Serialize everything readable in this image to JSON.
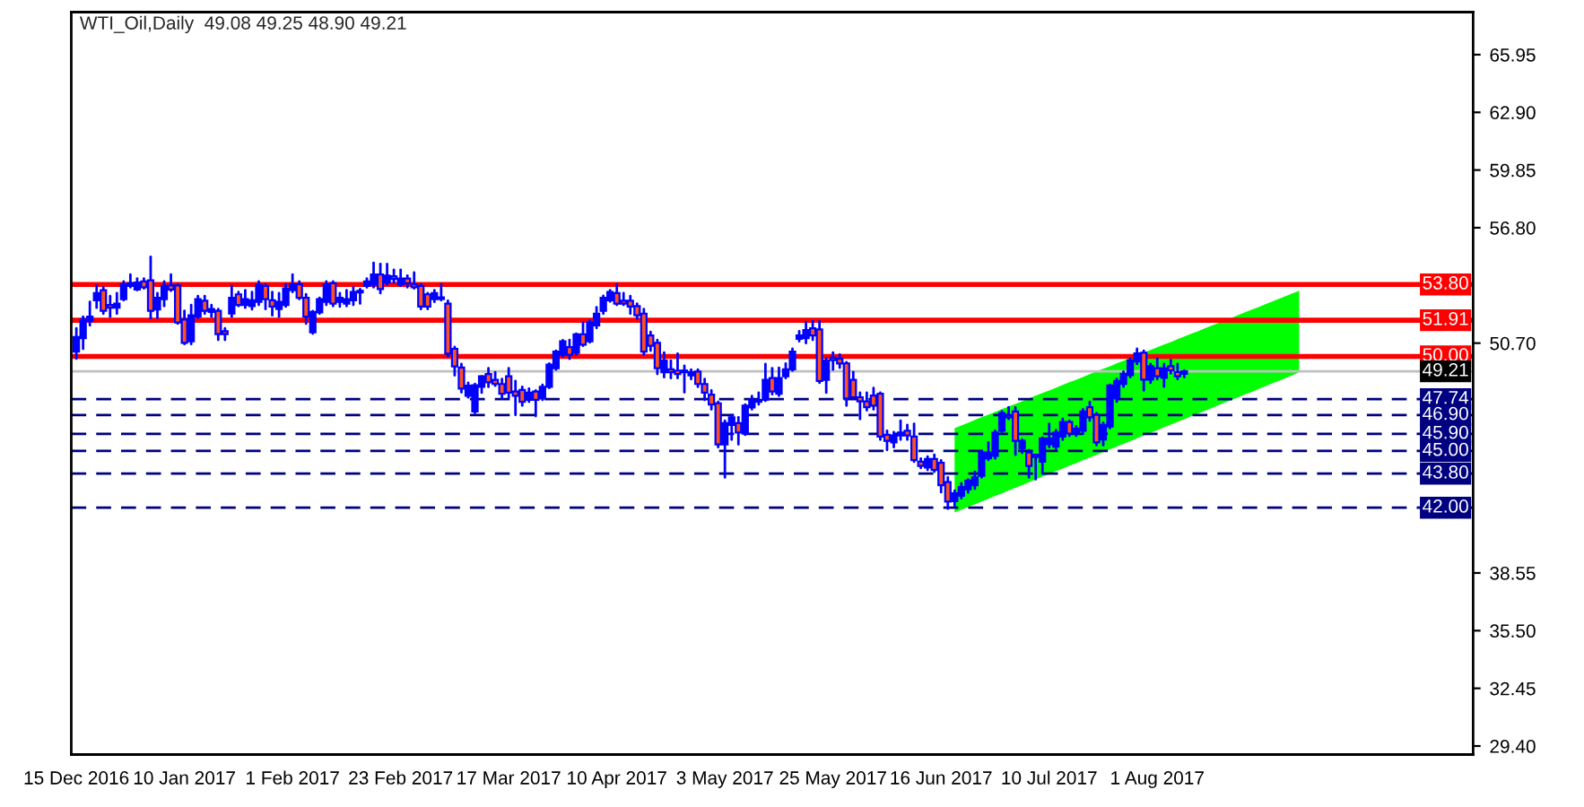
{
  "chart_data": {
    "type": "candlestick",
    "title": "WTI_Oil,Daily  49.08 49.25 48.90 49.21",
    "categories": [
      "15 Dec 2016",
      null,
      null,
      null,
      null,
      null,
      null,
      null,
      null,
      null,
      null,
      null,
      null,
      null,
      null,
      null,
      "10 Jan 2017",
      null,
      null,
      null,
      null,
      null,
      null,
      null,
      null,
      null,
      null,
      null,
      null,
      null,
      null,
      null,
      "1 Feb 2017",
      null,
      null,
      null,
      null,
      null,
      null,
      null,
      null,
      null,
      null,
      null,
      null,
      null,
      null,
      null,
      "23 Feb 2017",
      null,
      null,
      null,
      null,
      null,
      null,
      null,
      null,
      null,
      null,
      null,
      null,
      null,
      null,
      null,
      "17 Mar 2017",
      null,
      null,
      null,
      null,
      null,
      null,
      null,
      null,
      null,
      null,
      null,
      null,
      null,
      null,
      null,
      "10 Apr 2017",
      null,
      null,
      null,
      null,
      null,
      null,
      null,
      null,
      null,
      null,
      null,
      null,
      null,
      null,
      null,
      "3 May 2017",
      null,
      null,
      null,
      null,
      null,
      null,
      null,
      null,
      null,
      null,
      null,
      null,
      null,
      null,
      null,
      "25 May 2017",
      null,
      null,
      null,
      null,
      null,
      null,
      null,
      null,
      null,
      null,
      null,
      null,
      null,
      null,
      null,
      "16 Jun 2017",
      null,
      null,
      null,
      null,
      null,
      null,
      null,
      null,
      null,
      null,
      null,
      null,
      null,
      null,
      null,
      "10 Jul 2017",
      null,
      null,
      null,
      null,
      null,
      null,
      null,
      null,
      null,
      null,
      null,
      null,
      null,
      null,
      null,
      "1 Aug 2017",
      null,
      null,
      null,
      null,
      null,
      null,
      null,
      null,
      null,
      null,
      null,
      null,
      null,
      null,
      null,
      null,
      null,
      null,
      null,
      null,
      null,
      null,
      null,
      null,
      null,
      null,
      null,
      null,
      null,
      null,
      null,
      null,
      null,
      null,
      null,
      null,
      null,
      null,
      null,
      null,
      null,
      null,
      null,
      null,
      null,
      null
    ],
    "ohlc": [
      [
        50.25,
        51.48,
        49.88,
        51.02
      ],
      [
        50.96,
        52.1,
        50.4,
        51.95
      ],
      [
        51.86,
        52.88,
        51.64,
        52.1
      ],
      [
        52.97,
        53.75,
        52.57,
        53.34
      ],
      [
        53.5,
        53.65,
        52.26,
        52.41
      ],
      [
        52.72,
        53.19,
        52.1,
        52.57
      ],
      [
        52.57,
        53.34,
        52.26,
        52.79
      ],
      [
        53.03,
        53.96,
        52.97,
        53.81
      ],
      [
        53.72,
        54.33,
        53.65,
        53.87
      ],
      [
        53.53,
        54.12,
        53.5,
        53.9
      ],
      [
        53.96,
        54.12,
        53.59,
        53.65
      ],
      [
        54.02,
        55.26,
        52.01,
        52.41
      ],
      [
        52.48,
        53.34,
        52.04,
        53.1
      ],
      [
        53.03,
        53.96,
        52.66,
        53.72
      ],
      [
        53.75,
        54.33,
        53.47,
        53.53
      ],
      [
        53.75,
        53.81,
        51.73,
        51.79
      ],
      [
        51.95,
        52.41,
        50.65,
        50.71
      ],
      [
        50.8,
        52.72,
        50.65,
        52.17
      ],
      [
        52.1,
        53.19,
        52.04,
        53.03
      ],
      [
        52.94,
        53.19,
        52.26,
        52.41
      ],
      [
        52.35,
        52.72,
        52.1,
        52.5
      ],
      [
        52.41,
        52.5,
        50.87,
        51.18
      ],
      [
        51.33,
        51.48,
        50.87,
        51.18
      ],
      [
        52.26,
        53.72,
        52.1,
        53.1
      ],
      [
        53.28,
        53.4,
        52.66,
        52.72
      ],
      [
        52.72,
        53.5,
        52.57,
        53.03
      ],
      [
        52.66,
        53.4,
        52.48,
        52.97
      ],
      [
        52.88,
        53.96,
        52.72,
        53.78
      ],
      [
        53.72,
        53.81,
        52.5,
        53.03
      ],
      [
        52.97,
        53.4,
        52.17,
        52.63
      ],
      [
        52.5,
        53.34,
        52.1,
        52.88
      ],
      [
        52.72,
        53.81,
        52.63,
        53.59
      ],
      [
        53.5,
        54.33,
        53.4,
        53.81
      ],
      [
        53.81,
        53.96,
        53.03,
        53.1
      ],
      [
        53.1,
        53.28,
        51.73,
        52.1
      ],
      [
        51.27,
        52.4,
        51.2,
        52.35
      ],
      [
        52.32,
        53.1,
        52.26,
        53.03
      ],
      [
        52.88,
        53.96,
        52.72,
        53.81
      ],
      [
        53.87,
        53.96,
        52.66,
        52.79
      ],
      [
        52.88,
        53.34,
        52.63,
        53.1
      ],
      [
        52.79,
        53.5,
        52.66,
        53.03
      ],
      [
        52.97,
        53.65,
        52.72,
        53.4
      ],
      [
        53.38,
        53.56,
        52.79,
        53.47
      ],
      [
        53.72,
        54.12,
        53.65,
        53.96
      ],
      [
        53.81,
        54.95,
        53.65,
        54.33
      ],
      [
        54.33,
        54.89,
        53.34,
        53.56
      ],
      [
        53.9,
        54.89,
        53.81,
        54.27
      ],
      [
        54.23,
        54.58,
        53.9,
        54.09
      ],
      [
        53.81,
        54.58,
        53.72,
        54.12
      ],
      [
        54.12,
        54.27,
        53.65,
        53.87
      ],
      [
        53.81,
        54.43,
        53.59,
        53.65
      ],
      [
        53.72,
        53.81,
        52.5,
        52.63
      ],
      [
        53.28,
        53.34,
        52.5,
        52.63
      ],
      [
        53.03,
        53.5,
        52.88,
        53.34
      ],
      [
        53.03,
        53.81,
        52.97,
        53.12
      ],
      [
        52.79,
        52.94,
        50.0,
        50.15
      ],
      [
        50.4,
        50.5,
        49.0,
        49.47
      ],
      [
        49.41,
        49.6,
        48.1,
        48.3
      ],
      [
        47.92,
        48.6,
        47.83,
        48.45
      ],
      [
        47.09,
        48.55,
        47.0,
        48.48
      ],
      [
        48.39,
        48.95,
        48.08,
        48.95
      ],
      [
        49.07,
        49.38,
        48.39,
        48.63
      ],
      [
        48.76,
        49.16,
        48.45,
        48.54
      ],
      [
        48.54,
        48.8,
        47.77,
        48.02
      ],
      [
        48.95,
        49.38,
        47.83,
        48.08
      ],
      [
        48.14,
        48.7,
        46.9,
        47.92
      ],
      [
        48.23,
        48.39,
        47.4,
        47.6
      ],
      [
        47.7,
        48.3,
        47.6,
        48.08
      ],
      [
        48.14,
        48.2,
        46.84,
        47.7
      ],
      [
        47.77,
        48.5,
        47.7,
        48.39
      ],
      [
        48.39,
        49.62,
        48.33,
        49.56
      ],
      [
        49.38,
        50.3,
        49.3,
        50.25
      ],
      [
        50.09,
        50.85,
        50.0,
        50.8
      ],
      [
        50.49,
        50.87,
        49.87,
        50.09
      ],
      [
        50.18,
        51.2,
        50.09,
        51.17
      ],
      [
        51.17,
        51.79,
        50.56,
        50.62
      ],
      [
        50.8,
        51.9,
        50.74,
        51.79
      ],
      [
        51.64,
        52.6,
        51.5,
        52.26
      ],
      [
        52.41,
        53.2,
        52.26,
        53.1
      ],
      [
        52.97,
        53.5,
        52.9,
        53.4
      ],
      [
        53.34,
        53.81,
        52.72,
        52.79
      ],
      [
        52.94,
        53.34,
        52.72,
        52.79
      ],
      [
        52.94,
        53.19,
        52.26,
        52.63
      ],
      [
        52.66,
        52.79,
        52.0,
        52.17
      ],
      [
        52.26,
        52.5,
        50.1,
        50.25
      ],
      [
        51.11,
        51.3,
        50.3,
        50.56
      ],
      [
        50.71,
        50.87,
        49.07,
        49.38
      ],
      [
        49.16,
        50.2,
        48.9,
        49.78
      ],
      [
        49.32,
        49.78,
        48.85,
        49.16
      ],
      [
        49.25,
        50.15,
        48.85,
        49.07
      ],
      [
        49.16,
        49.5,
        48.1,
        49.25
      ],
      [
        49.0,
        49.3,
        48.8,
        49.16
      ],
      [
        49.2,
        49.3,
        48.39,
        48.54
      ],
      [
        48.54,
        48.8,
        47.7,
        48.08
      ],
      [
        47.98,
        48.2,
        47.2,
        47.46
      ],
      [
        47.52,
        47.6,
        45.2,
        45.35
      ],
      [
        45.35,
        46.6,
        43.6,
        46.47
      ],
      [
        46.38,
        46.9,
        45.6,
        46.78
      ],
      [
        46.47,
        46.78,
        45.35,
        45.97
      ],
      [
        45.91,
        47.46,
        45.85,
        47.4
      ],
      [
        47.3,
        47.9,
        47.2,
        47.7
      ],
      [
        47.6,
        48.08,
        47.46,
        47.7
      ],
      [
        47.7,
        49.6,
        47.65,
        48.76
      ],
      [
        48.85,
        49.38,
        48.0,
        48.14
      ],
      [
        48.02,
        49.4,
        47.92,
        48.85
      ],
      [
        48.95,
        49.62,
        48.85,
        49.32
      ],
      [
        49.32,
        50.4,
        49.25,
        50.25
      ],
      [
        50.93,
        51.33,
        50.8,
        51.1
      ],
      [
        50.96,
        51.8,
        50.7,
        51.39
      ],
      [
        51.48,
        51.86,
        50.87,
        51.1
      ],
      [
        51.42,
        51.86,
        48.6,
        48.7
      ],
      [
        48.76,
        49.9,
        48.08,
        49.78
      ],
      [
        49.93,
        50.2,
        49.3,
        49.8
      ],
      [
        49.87,
        50.1,
        49.4,
        49.62
      ],
      [
        49.63,
        49.7,
        47.4,
        47.77
      ],
      [
        48.76,
        49.17,
        47.77,
        47.84
      ],
      [
        47.84,
        48.08,
        46.69,
        47.62
      ],
      [
        47.62,
        48.08,
        47.15,
        47.31
      ],
      [
        47.93,
        48.33,
        47.2,
        47.4
      ],
      [
        48.02,
        48.08,
        45.6,
        45.76
      ],
      [
        45.85,
        46.07,
        45.05,
        45.54
      ],
      [
        45.45,
        46.0,
        45.2,
        45.82
      ],
      [
        45.82,
        46.6,
        45.6,
        45.98
      ],
      [
        46.07,
        46.38,
        45.6,
        45.82
      ],
      [
        45.76,
        46.44,
        44.43,
        44.52
      ],
      [
        44.43,
        44.6,
        44.1,
        44.21
      ],
      [
        44.12,
        44.7,
        44.0,
        44.58
      ],
      [
        44.58,
        44.8,
        43.9,
        43.99
      ],
      [
        44.37,
        44.5,
        42.82,
        43.19
      ],
      [
        43.35,
        43.6,
        41.95,
        42.32
      ],
      [
        42.35,
        42.9,
        42.1,
        42.76
      ],
      [
        42.63,
        43.3,
        42.5,
        43.1
      ],
      [
        42.97,
        43.5,
        42.8,
        43.44
      ],
      [
        43.19,
        43.9,
        43.0,
        43.6
      ],
      [
        43.69,
        45.0,
        43.6,
        44.92
      ],
      [
        44.61,
        45.45,
        44.52,
        44.92
      ],
      [
        44.74,
        46.07,
        44.6,
        45.98
      ],
      [
        46.07,
        47.1,
        46.0,
        47.0
      ],
      [
        46.9,
        47.31,
        46.69,
        46.78
      ],
      [
        47.09,
        47.3,
        44.8,
        45.54
      ],
      [
        45.14,
        45.6,
        44.9,
        45.54
      ],
      [
        44.92,
        45.05,
        43.6,
        44.21
      ],
      [
        44.8,
        44.8,
        43.5,
        44.68
      ],
      [
        44.43,
        45.7,
        43.8,
        45.67
      ],
      [
        45.36,
        46.44,
        45.2,
        45.67
      ],
      [
        45.23,
        46.1,
        45.1,
        45.98
      ],
      [
        45.76,
        46.7,
        45.6,
        46.53
      ],
      [
        46.53,
        46.6,
        45.8,
        45.92
      ],
      [
        45.92,
        46.3,
        45.8,
        46.17
      ],
      [
        46.07,
        47.2,
        45.9,
        47.09
      ],
      [
        47.31,
        47.6,
        46.6,
        46.78
      ],
      [
        46.91,
        47.0,
        45.3,
        45.45
      ],
      [
        45.61,
        46.5,
        45.3,
        46.38
      ],
      [
        46.29,
        48.5,
        46.2,
        48.46
      ],
      [
        47.77,
        48.8,
        47.6,
        48.7
      ],
      [
        48.55,
        49.2,
        48.4,
        49.08
      ],
      [
        49.01,
        49.9,
        48.9,
        49.79
      ],
      [
        49.73,
        50.4,
        49.6,
        50.16
      ],
      [
        50.19,
        50.3,
        48.2,
        48.77
      ],
      [
        48.77,
        49.6,
        48.6,
        49.48
      ],
      [
        49.38,
        49.9,
        48.8,
        48.95
      ],
      [
        48.86,
        49.6,
        48.4,
        49.38
      ],
      [
        49.48,
        49.8,
        49.1,
        49.26
      ],
      [
        49.17,
        49.6,
        48.8,
        48.95
      ],
      [
        49.08,
        49.25,
        48.9,
        49.21
      ],
      null,
      null,
      null,
      null,
      null,
      null,
      null,
      null,
      null,
      null,
      null,
      null,
      null,
      null,
      null,
      null,
      null,
      null,
      null,
      null,
      null,
      null,
      null,
      null,
      null,
      null,
      null,
      null,
      null,
      null,
      null,
      null,
      null,
      null,
      null,
      null,
      null,
      null,
      null,
      null,
      null,
      null
    ],
    "series": [
      {
        "type": "area",
        "color": "#00ff00",
        "values": [
          null,
          null,
          null,
          null,
          null,
          null,
          null,
          null,
          null,
          null,
          null,
          null,
          null,
          null,
          null,
          null,
          null,
          null,
          null,
          null,
          null,
          null,
          null,
          null,
          null,
          null,
          null,
          null,
          null,
          null,
          null,
          null,
          null,
          null,
          null,
          null,
          null,
          null,
          null,
          null,
          null,
          null,
          null,
          null,
          null,
          null,
          null,
          null,
          null,
          null,
          null,
          null,
          null,
          null,
          null,
          null,
          null,
          null,
          null,
          null,
          null,
          null,
          null,
          null,
          null,
          null,
          null,
          null,
          null,
          null,
          null,
          null,
          null,
          null,
          null,
          null,
          null,
          null,
          null,
          null,
          null,
          null,
          null,
          null,
          null,
          null,
          null,
          null,
          null,
          null,
          null,
          null,
          null,
          null,
          null,
          null,
          null,
          null,
          null,
          null,
          null,
          null,
          null,
          null,
          null,
          null,
          null,
          null,
          null,
          null,
          null,
          null,
          null,
          null,
          null,
          null,
          null,
          null,
          null,
          null,
          null,
          null,
          null,
          null,
          null,
          null,
          null,
          null,
          null,
          null,
          null,
          null,
          null,
          null,
          null,
          null,
          null,
          null,
          null,
          null,
          null,
          null,
          null,
          null,
          null,
          null,
          null,
          null,
          null,
          null,
          null,
          null,
          null,
          null,
          null,
          null,
          null,
          null,
          null,
          null,
          null,
          null,
          null,
          null,
          null,
          null,
          null,
          null,
          null,
          null,
          null,
          null,
          null,
          null,
          null,
          null,
          null,
          null,
          null,
          null,
          null,
          null,
          null,
          null,
          null,
          null,
          null,
          null,
          null,
          null,
          null,
          null,
          null,
          null,
          null,
          null,
          null,
          null,
          null,
          null,
          null,
          null,
          null,
          null,
          null,
          null,
          null
        ],
        "lower": [
          null,
          null,
          null,
          null,
          null,
          null,
          null,
          null,
          null,
          null,
          null,
          null,
          null,
          null,
          null,
          null,
          null,
          null,
          null,
          null,
          null,
          null,
          null,
          null,
          null,
          null,
          null,
          null,
          null,
          null,
          null,
          null,
          null,
          null,
          null,
          null,
          null,
          null,
          null,
          null,
          null,
          null,
          null,
          null,
          null,
          null,
          null,
          null,
          null,
          null,
          null,
          null,
          null,
          null,
          null,
          null,
          null,
          null,
          null,
          null,
          null,
          null,
          null,
          null,
          null,
          null,
          null,
          null,
          null,
          null,
          null,
          null,
          null,
          null,
          null,
          null,
          null,
          null,
          null,
          null,
          null,
          null,
          null,
          null,
          null,
          null,
          null,
          null,
          null,
          null,
          null,
          null,
          null,
          null,
          null,
          null,
          null,
          null,
          null,
          null,
          null,
          null,
          null,
          null,
          null,
          null,
          null,
          null,
          null,
          null,
          null,
          null,
          null,
          null,
          null,
          null,
          null,
          null,
          null,
          null,
          null,
          null,
          null,
          null,
          null,
          null,
          null,
          null,
          null,
          null,
          41.75,
          41.89,
          42.04,
          42.18,
          42.33,
          42.47,
          42.62,
          42.76,
          42.91,
          43.05,
          43.2,
          43.35,
          43.49,
          43.64,
          43.78,
          43.93,
          44.07,
          44.22,
          44.36,
          44.51,
          44.65,
          44.8,
          44.94,
          45.09,
          45.23,
          45.38,
          45.52,
          45.67,
          45.81,
          45.96,
          46.1,
          46.25,
          46.39,
          46.54,
          46.68,
          46.83,
          46.97,
          47.12,
          47.26,
          47.41,
          47.55,
          47.7,
          47.84,
          47.99,
          48.13,
          48.28,
          48.42,
          48.57,
          48.71,
          48.86,
          49.0,
          49.15,
          null,
          null,
          null,
          null,
          null,
          null,
          null,
          null,
          null,
          null,
          null,
          null,
          null,
          null,
          null,
          null,
          null,
          null,
          null,
          null,
          null,
          null,
          null,
          null,
          null
        ],
        "upper": [
          null,
          null,
          null,
          null,
          null,
          null,
          null,
          null,
          null,
          null,
          null,
          null,
          null,
          null,
          null,
          null,
          null,
          null,
          null,
          null,
          null,
          null,
          null,
          null,
          null,
          null,
          null,
          null,
          null,
          null,
          null,
          null,
          null,
          null,
          null,
          null,
          null,
          null,
          null,
          null,
          null,
          null,
          null,
          null,
          null,
          null,
          null,
          null,
          null,
          null,
          null,
          null,
          null,
          null,
          null,
          null,
          null,
          null,
          null,
          null,
          null,
          null,
          null,
          null,
          null,
          null,
          null,
          null,
          null,
          null,
          null,
          null,
          null,
          null,
          null,
          null,
          null,
          null,
          null,
          null,
          null,
          null,
          null,
          null,
          null,
          null,
          null,
          null,
          null,
          null,
          null,
          null,
          null,
          null,
          null,
          null,
          null,
          null,
          null,
          null,
          null,
          null,
          null,
          null,
          null,
          null,
          null,
          null,
          null,
          null,
          null,
          null,
          null,
          null,
          null,
          null,
          null,
          null,
          null,
          null,
          null,
          null,
          null,
          null,
          null,
          null,
          null,
          null,
          null,
          null,
          46.21,
          46.35,
          46.49,
          46.64,
          46.78,
          46.92,
          47.06,
          47.21,
          47.35,
          47.49,
          47.63,
          47.78,
          47.92,
          48.06,
          48.2,
          48.34,
          48.49,
          48.63,
          48.77,
          48.91,
          49.06,
          49.2,
          49.34,
          49.48,
          49.63,
          49.77,
          49.91,
          50.05,
          50.19,
          50.34,
          50.48,
          50.62,
          50.76,
          50.91,
          51.05,
          51.19,
          51.33,
          51.48,
          51.62,
          51.76,
          51.9,
          52.04,
          52.19,
          52.33,
          52.47,
          52.61,
          52.76,
          52.9,
          53.04,
          53.18,
          53.33,
          53.47,
          null,
          null,
          null,
          null,
          null,
          null,
          null,
          null,
          null,
          null,
          null,
          null,
          null,
          null,
          null,
          null,
          null,
          null,
          null,
          null,
          null,
          null,
          null,
          null,
          null
        ]
      }
    ],
    "ylim": [
      28.95,
      68.2
    ],
    "yticks": [
      {
        "value": 29.4,
        "label": "29.40"
      },
      32.45,
      {
        "value": 35.5,
        "label": "35.50"
      },
      38.55,
      {
        "value": 50.7,
        "label": "50.70"
      },
      {
        "value": 56.8,
        "label": "56.80"
      },
      59.85,
      {
        "value": 62.9,
        "label": "62.90"
      },
      65.95
    ],
    "ref_lines": [
      {
        "axis": "y",
        "value": 53.8,
        "label": "53.80",
        "color": "#ff0000",
        "line_style": "solid"
      },
      {
        "axis": "y",
        "value": 51.91,
        "label": "51.91",
        "color": "#ff0000",
        "line_style": "solid"
      },
      {
        "axis": "y",
        "value": 50.0,
        "label": "50.00",
        "color": "#ff0000",
        "line_style": "solid"
      },
      {
        "axis": "y",
        "value": 49.21,
        "label": "49.21",
        "color": "#c0c0c0",
        "line_style": "solid"
      },
      {
        "axis": "y",
        "value": 47.74,
        "label": "47.74",
        "color": "#000080",
        "line_style": "dashed"
      },
      {
        "axis": "y",
        "value": 46.9,
        "label": "46.90",
        "color": "#000080",
        "line_style": "dashed"
      },
      {
        "axis": "y",
        "value": 45.9,
        "label": "45.90",
        "color": "#000080",
        "line_style": "dashed"
      },
      {
        "axis": "y",
        "value": 45.0,
        "label": "45.00",
        "color": "#000080",
        "line_style": "dashed"
      },
      {
        "axis": "y",
        "value": 43.8,
        "label": "43.80",
        "color": "#000080",
        "line_style": "dashed"
      },
      {
        "axis": "y",
        "value": 42.0,
        "label": "42.00",
        "color": "#000080",
        "line_style": "dashed"
      }
    ],
    "grid": false
  }
}
